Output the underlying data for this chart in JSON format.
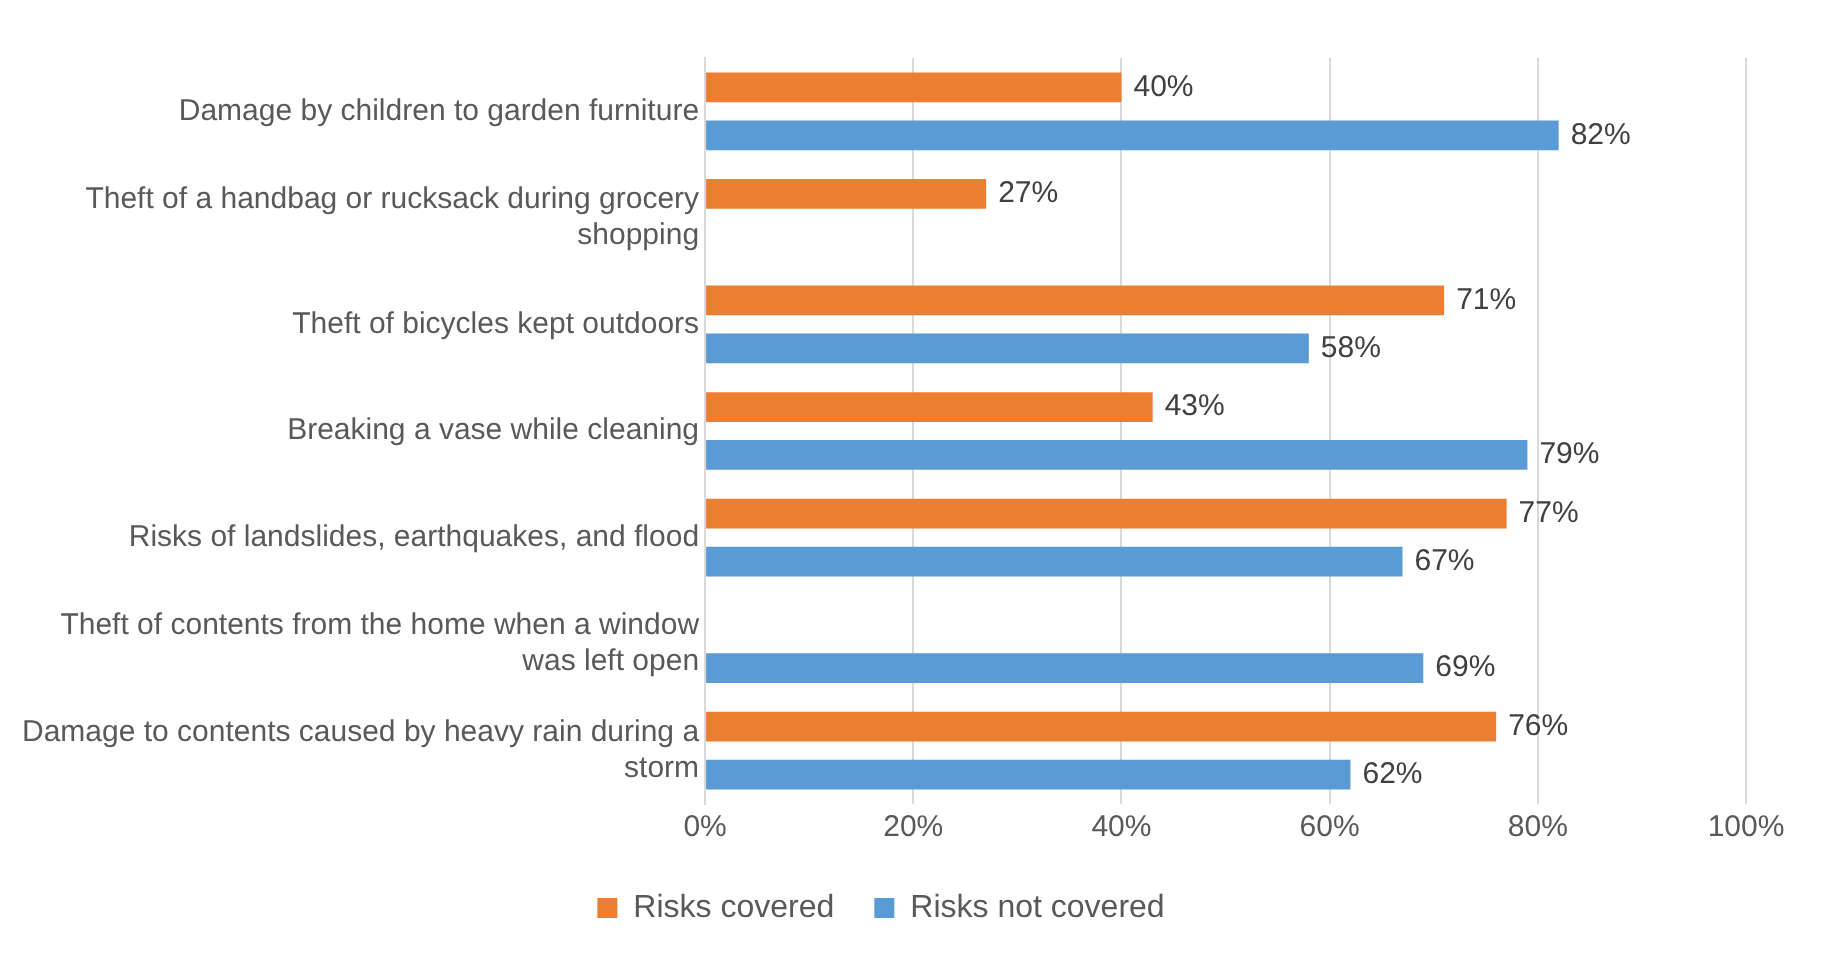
{
  "chart_data": {
    "type": "bar",
    "orientation": "horizontal",
    "categories": [
      "Damage by children to garden furniture",
      "Theft of a handbag or rucksack during grocery shopping",
      "Theft of bicycles kept outdoors",
      "Breaking a vase while cleaning",
      "Risks of landslides, earthquakes, and flood",
      "Theft of contents from the home when a window was left open",
      "Damage to contents caused by heavy rain during a storm"
    ],
    "series": [
      {
        "name": "Risks covered",
        "color": "#ed7d31",
        "values": [
          40,
          27,
          71,
          43,
          77,
          null,
          76
        ],
        "value_labels": [
          "40%",
          "27%",
          "71%",
          "43%",
          "77%",
          null,
          "76%"
        ]
      },
      {
        "name": "Risks not covered",
        "color": "#5b9bd5",
        "values": [
          82,
          null,
          58,
          79,
          67,
          69,
          62
        ],
        "value_labels": [
          "82%",
          null,
          "58%",
          "79%",
          "67%",
          "69%",
          "62%"
        ]
      }
    ],
    "xlim": [
      0,
      100
    ],
    "xticks": [
      {
        "value": 0,
        "label": "0%"
      },
      {
        "value": 20,
        "label": "20%"
      },
      {
        "value": 40,
        "label": "40%"
      },
      {
        "value": 60,
        "label": "60%"
      },
      {
        "value": 80,
        "label": "80%"
      },
      {
        "value": 100,
        "label": "100%"
      }
    ],
    "grid": "x",
    "legend": "bottom"
  }
}
